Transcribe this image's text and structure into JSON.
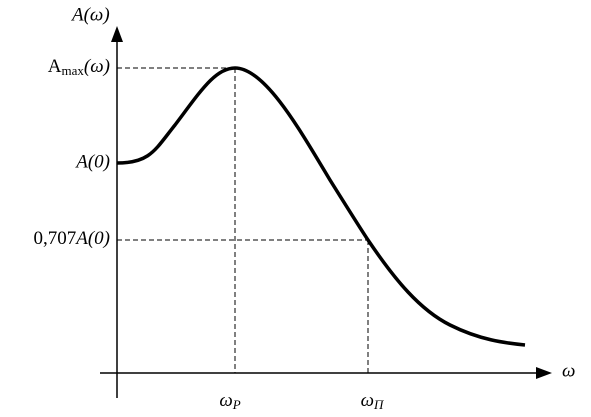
{
  "axes": {
    "y_label": "A(ω)",
    "x_label": "ω"
  },
  "y_levels": [
    {
      "text": "A",
      "sub": "max",
      "suffix": "(ω)"
    },
    {
      "text": "A(0)"
    },
    {
      "text": "0,707",
      "suffix": "A(0)"
    }
  ],
  "x_marks": [
    {
      "text": "ω",
      "sub": "P"
    },
    {
      "text": "ω",
      "sub": "П"
    }
  ]
}
